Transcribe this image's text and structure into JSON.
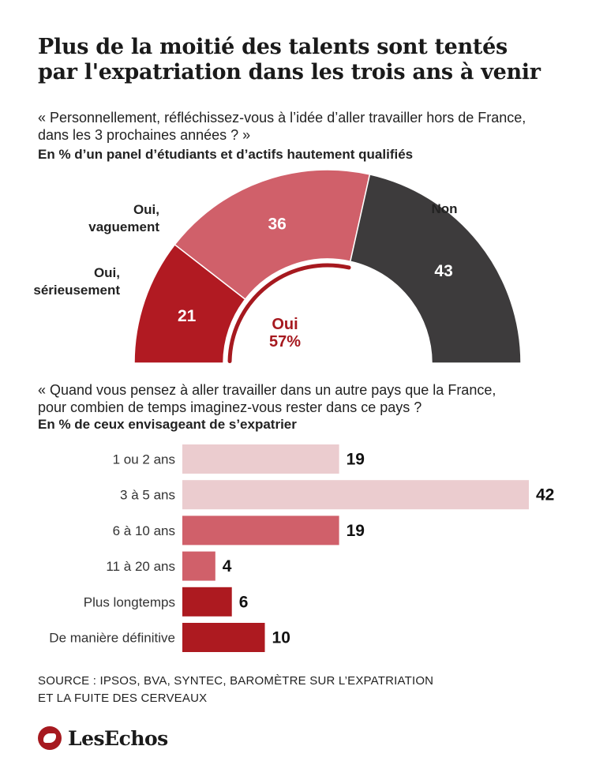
{
  "title": {
    "line1": "Plus de la moitié des talents sont tentés",
    "line2": "par l'expatriation dans les trois ans à venir"
  },
  "q1": {
    "line1": "« Personnellement, réfléchissez-vous à l’idée d’aller travailler hors de France,",
    "line2": "dans les 3 prochaines années ? »",
    "unit": "En % d’un panel d’étudiants et d’actifs hautement qualifiés"
  },
  "q2": {
    "line1": "« Quand vous pensez à aller travailler dans un autre pays que la France,",
    "line2": "pour combien de temps imaginez-vous rester dans ce pays ?",
    "unit": "En % de ceux envisageant de s’expatrier"
  },
  "source": {
    "line1": "SOURCE : IPSOS, BVA, SYNTEC, BAROMÈTRE SUR L’EXPATRIATION",
    "line2": "ET LA FUITE DES CERVEAUX"
  },
  "logo": {
    "text": "LesEchos",
    "icon": "les-echos-bird-icon",
    "color": "#a6191f"
  },
  "chart_data": [
    {
      "type": "pie",
      "variant": "half-donut",
      "unit": "%",
      "slices": [
        {
          "label_line1": "Oui,",
          "label_line2": "sérieusement",
          "value": 21,
          "color": "#b11a22"
        },
        {
          "label_line1": "Oui,",
          "label_line2": "vaguement",
          "value": 36,
          "color": "#d0606a"
        },
        {
          "label_line1": "Non",
          "label_line2": "",
          "value": 43,
          "color": "#3d3b3c"
        }
      ],
      "center_label": {
        "line1": "Oui",
        "line2": "57%",
        "color": "#a6191f"
      }
    },
    {
      "type": "bar",
      "orientation": "horizontal",
      "unit": "%",
      "xlim": [
        0,
        42
      ],
      "categories": [
        "1 ou 2 ans",
        "3 à 5 ans",
        "6 à 10 ans",
        "11 à 20 ans",
        "Plus longtemps",
        "De manière définitive"
      ],
      "values": [
        19,
        42,
        19,
        4,
        6,
        10
      ],
      "colors": [
        "#ebcccf",
        "#ebcccf",
        "#d0606a",
        "#d0606a",
        "#ad1a20",
        "#ad1a20"
      ]
    }
  ]
}
